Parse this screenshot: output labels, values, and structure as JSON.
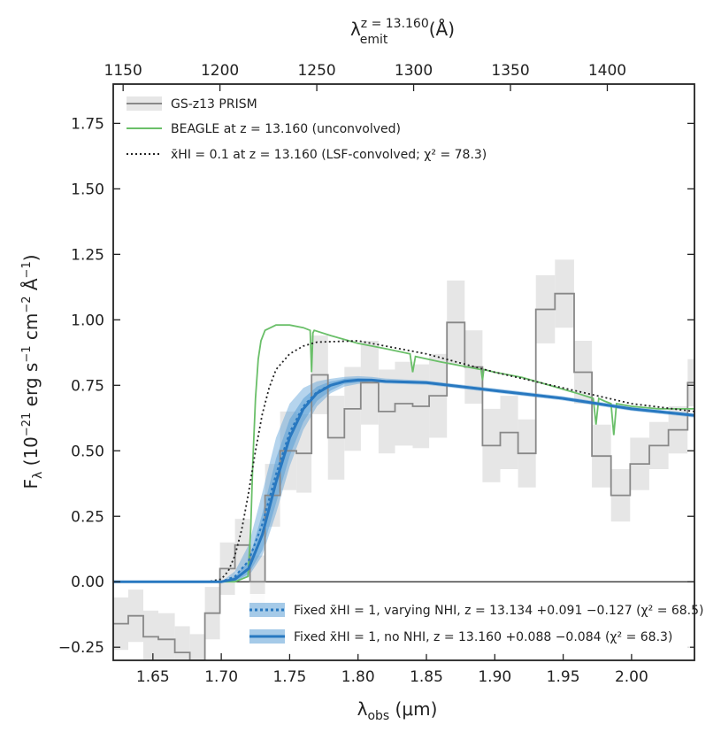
{
  "chart_data": {
    "type": "line",
    "title": "",
    "xlabel": "λobs (μm)",
    "ylabel": "Fλ (10⁻²¹ erg s⁻¹ cm⁻² Å⁻¹)",
    "top_xlabel": "λemit z = 13.160 (Å)",
    "xlim": [
      1.621,
      2.046
    ],
    "ylim": [
      -0.3,
      1.9
    ],
    "top_xlim": [
      1144.9,
      1445.0
    ],
    "x_ticks": [
      1.65,
      1.7,
      1.75,
      1.8,
      1.85,
      1.9,
      1.95,
      2.0
    ],
    "x_tick_labels": [
      "1.65",
      "1.70",
      "1.75",
      "1.80",
      "1.85",
      "1.90",
      "1.95",
      "2.00"
    ],
    "y_ticks": [
      -0.25,
      0.0,
      0.25,
      0.5,
      0.75,
      1.0,
      1.25,
      1.5,
      1.75
    ],
    "y_tick_labels": [
      "−0.25",
      "0.00",
      "0.25",
      "0.50",
      "0.75",
      "1.00",
      "1.25",
      "1.50",
      "1.75"
    ],
    "top_ticks": [
      1150,
      1200,
      1250,
      1300,
      1350,
      1400
    ],
    "top_tick_labels": [
      "1150",
      "1200",
      "1250",
      "1300",
      "1350",
      "1400"
    ],
    "legend_upper": [
      "GS-z13 PRISM",
      "BEAGLE at z = 13.160 (unconvolved)",
      "x̄HI = 0.1 at z = 13.160 (LSF-convolved; χ² = 78.3)"
    ],
    "legend_lower": [
      "Fixed x̄HI = 1, varying NHI, z = 13.134 +0.091 −0.127 (χ² = 68.5)",
      "Fixed x̄HI = 1, no NHI, z = 13.160 +0.088 −0.084 (χ² = 68.3)"
    ],
    "colors": {
      "prism": "#888888",
      "prism_err": "#e6e6e6",
      "beagle": "#6abf69",
      "dotted": "#222222",
      "model": "#2878c0",
      "model_band": "#5b9fd6"
    },
    "series": [
      {
        "name": "GS-z13 PRISM",
        "style": "step",
        "edges": [
          1.621,
          1.632,
          1.643,
          1.654,
          1.666,
          1.677,
          1.688,
          1.699,
          1.71,
          1.721,
          1.732,
          1.743,
          1.755,
          1.766,
          1.778,
          1.79,
          1.802,
          1.815,
          1.827,
          1.84,
          1.852,
          1.865,
          1.878,
          1.891,
          1.904,
          1.917,
          1.93,
          1.944,
          1.958,
          1.971,
          1.985,
          1.999,
          2.013,
          2.027,
          2.041,
          2.046
        ],
        "values": [
          -0.16,
          -0.13,
          -0.21,
          -0.22,
          -0.27,
          -0.3,
          -0.12,
          0.05,
          0.14,
          0.0,
          0.33,
          0.5,
          0.49,
          0.79,
          0.55,
          0.66,
          0.76,
          0.65,
          0.68,
          0.67,
          0.71,
          0.99,
          0.82,
          0.52,
          0.57,
          0.49,
          1.04,
          1.1,
          0.8,
          0.48,
          0.33,
          0.45,
          0.52,
          0.58,
          0.76
        ],
        "errors": [
          0.1,
          0.1,
          0.1,
          0.1,
          0.1,
          0.1,
          0.1,
          0.1,
          0.1,
          0.1,
          0.12,
          0.15,
          0.15,
          0.15,
          0.16,
          0.16,
          0.16,
          0.16,
          0.16,
          0.16,
          0.16,
          0.16,
          0.14,
          0.14,
          0.14,
          0.13,
          0.13,
          0.13,
          0.12,
          0.12,
          0.1,
          0.1,
          0.09,
          0.09,
          0.09
        ]
      },
      {
        "name": "BEAGLE at z = 13.160 (unconvolved)",
        "style": "line",
        "x": [
          1.621,
          1.71,
          1.7195,
          1.7215,
          1.723,
          1.725,
          1.727,
          1.729,
          1.732,
          1.74,
          1.75,
          1.76,
          1.765,
          1.766,
          1.767,
          1.768,
          1.78,
          1.8,
          1.82,
          1.838,
          1.84,
          1.842,
          1.86,
          1.88,
          1.89,
          1.891,
          1.892,
          1.9,
          1.92,
          1.94,
          1.96,
          1.972,
          1.974,
          1.976,
          1.98,
          1.985,
          1.987,
          1.989,
          2.0,
          2.02,
          2.046
        ],
        "y": [
          0.0,
          0.0,
          0.02,
          0.2,
          0.45,
          0.7,
          0.85,
          0.92,
          0.96,
          0.98,
          0.98,
          0.97,
          0.96,
          0.8,
          0.95,
          0.96,
          0.94,
          0.91,
          0.89,
          0.87,
          0.8,
          0.86,
          0.84,
          0.82,
          0.81,
          0.77,
          0.81,
          0.8,
          0.78,
          0.75,
          0.72,
          0.7,
          0.6,
          0.7,
          0.69,
          0.68,
          0.56,
          0.68,
          0.67,
          0.66,
          0.66
        ]
      },
      {
        "name": "x̄HI = 0.1 at z = 13.160 (LSF-convolved; χ² = 78.3)",
        "style": "dotted",
        "x": [
          1.621,
          1.69,
          1.7,
          1.705,
          1.71,
          1.715,
          1.72,
          1.725,
          1.73,
          1.735,
          1.74,
          1.75,
          1.76,
          1.77,
          1.8,
          1.85,
          1.9,
          1.95,
          2.0,
          2.046
        ],
        "y": [
          0.0,
          0.0,
          0.01,
          0.04,
          0.1,
          0.2,
          0.34,
          0.5,
          0.64,
          0.74,
          0.81,
          0.87,
          0.9,
          0.915,
          0.92,
          0.87,
          0.8,
          0.74,
          0.68,
          0.65
        ]
      },
      {
        "name": "Fixed x̄HI = 1, no NHI (median)",
        "style": "line",
        "x": [
          1.621,
          1.7,
          1.71,
          1.72,
          1.73,
          1.74,
          1.75,
          1.76,
          1.77,
          1.78,
          1.79,
          1.8,
          1.81,
          1.82,
          1.85,
          1.9,
          1.95,
          2.0,
          2.046
        ],
        "y": [
          0.0,
          0.0,
          0.01,
          0.05,
          0.18,
          0.38,
          0.55,
          0.66,
          0.72,
          0.75,
          0.765,
          0.77,
          0.77,
          0.765,
          0.76,
          0.73,
          0.7,
          0.66,
          0.635
        ],
        "band_lower": [
          0.0,
          0.0,
          0.0,
          0.03,
          0.12,
          0.3,
          0.48,
          0.61,
          0.69,
          0.73,
          0.755,
          0.76,
          0.765,
          0.76,
          0.755,
          0.725,
          0.695,
          0.655,
          0.63
        ],
        "band_upper": [
          0.0,
          0.0,
          0.02,
          0.08,
          0.26,
          0.47,
          0.62,
          0.7,
          0.745,
          0.765,
          0.775,
          0.778,
          0.775,
          0.77,
          0.765,
          0.735,
          0.705,
          0.665,
          0.64
        ]
      },
      {
        "name": "Fixed x̄HI = 1, varying NHI (median)",
        "style": "dotted",
        "x": [
          1.621,
          1.7,
          1.71,
          1.72,
          1.73,
          1.74,
          1.75,
          1.76,
          1.77,
          1.78,
          1.79,
          1.8,
          1.81,
          1.82,
          1.85,
          1.9,
          1.95,
          2.0,
          2.046
        ],
        "y": [
          0.0,
          0.0,
          0.02,
          0.08,
          0.22,
          0.41,
          0.57,
          0.67,
          0.725,
          0.752,
          0.765,
          0.77,
          0.77,
          0.765,
          0.76,
          0.73,
          0.7,
          0.66,
          0.635
        ],
        "band_lower": [
          0.0,
          0.0,
          0.0,
          0.02,
          0.1,
          0.26,
          0.44,
          0.58,
          0.67,
          0.72,
          0.745,
          0.755,
          0.76,
          0.757,
          0.752,
          0.722,
          0.692,
          0.652,
          0.627
        ],
        "band_upper": [
          0.0,
          0.0,
          0.04,
          0.14,
          0.34,
          0.55,
          0.68,
          0.74,
          0.765,
          0.775,
          0.782,
          0.785,
          0.782,
          0.776,
          0.768,
          0.738,
          0.708,
          0.668,
          0.643
        ]
      }
    ]
  }
}
